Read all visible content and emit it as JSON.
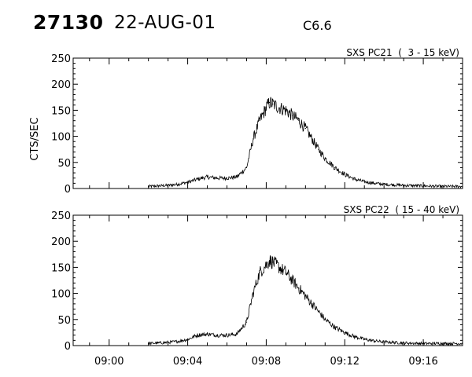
{
  "header": {
    "event_id": "27130",
    "date": "22-AUG-01",
    "flare_class": "C6.6"
  },
  "chart_data": [
    {
      "type": "line",
      "title": "SXS PC21  (  3 - 15 keV)",
      "xlabel": "",
      "ylabel": "CTS/SEC",
      "xlim": [
        "08:58:10",
        "09:18:00"
      ],
      "ylim": [
        0,
        250
      ],
      "yticks": [
        0,
        50,
        100,
        150,
        200,
        250
      ],
      "xticks": [
        "09:00",
        "09:04",
        "09:08",
        "09:12",
        "09:16"
      ],
      "x_tick_labels_shown": false,
      "grid": false,
      "series": [
        {
          "x": [
            "09:02:00",
            "09:02:30",
            "09:03:00",
            "09:03:30",
            "09:04:00",
            "09:04:30",
            "09:05:00",
            "09:05:30",
            "09:06:00",
            "09:06:30",
            "09:07:00",
            "09:07:20",
            "09:07:40",
            "09:08:00",
            "09:08:10",
            "09:08:20",
            "09:08:40",
            "09:09:00",
            "09:09:20",
            "09:09:40",
            "09:10:00",
            "09:10:20",
            "09:10:40",
            "09:11:00",
            "09:11:30",
            "09:12:00",
            "09:12:30",
            "09:13:00",
            "09:13:30",
            "09:14:00",
            "09:15:00",
            "09:16:00",
            "09:17:00",
            "09:18:00"
          ],
          "y": [
            4,
            5,
            6,
            8,
            12,
            18,
            22,
            20,
            20,
            22,
            40,
            95,
            130,
            155,
            165,
            162,
            155,
            150,
            140,
            130,
            115,
            95,
            75,
            58,
            40,
            27,
            18,
            13,
            10,
            8,
            6,
            5,
            4,
            4
          ]
        }
      ]
    },
    {
      "type": "line",
      "title": "SXS PC22  ( 15 - 40 keV)",
      "xlabel": "",
      "ylabel": "",
      "xlim": [
        "08:58:10",
        "09:18:00"
      ],
      "ylim": [
        0,
        250
      ],
      "yticks": [
        0,
        50,
        100,
        150,
        200,
        250
      ],
      "xticks": [
        "09:00",
        "09:04",
        "09:08",
        "09:12",
        "09:16"
      ],
      "x_tick_labels_shown": true,
      "grid": false,
      "series": [
        {
          "x": [
            "09:02:00",
            "09:02:30",
            "09:03:00",
            "09:03:30",
            "09:04:00",
            "09:04:30",
            "09:05:00",
            "09:05:30",
            "09:06:00",
            "09:06:30",
            "09:07:00",
            "09:07:20",
            "09:07:40",
            "09:08:00",
            "09:08:10",
            "09:08:20",
            "09:08:40",
            "09:09:00",
            "09:09:20",
            "09:09:40",
            "09:10:00",
            "09:10:20",
            "09:10:40",
            "09:11:00",
            "09:11:30",
            "09:12:00",
            "09:12:30",
            "09:13:00",
            "09:13:30",
            "09:14:00",
            "09:15:00",
            "09:16:00",
            "09:17:00",
            "09:18:00"
          ],
          "y": [
            4,
            5,
            6,
            8,
            12,
            20,
            22,
            20,
            20,
            22,
            45,
            100,
            140,
            155,
            163,
            160,
            150,
            140,
            125,
            110,
            95,
            80,
            65,
            50,
            35,
            25,
            17,
            12,
            9,
            7,
            5,
            4,
            4,
            4
          ]
        }
      ]
    }
  ]
}
